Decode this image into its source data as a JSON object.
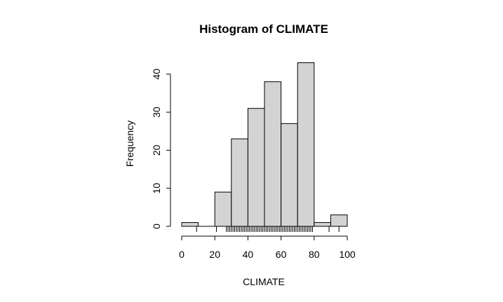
{
  "chart_data": {
    "type": "bar",
    "title": "Histogram of CLIMATE",
    "xlabel": "CLIMATE",
    "ylabel": "Frequency",
    "bins": [
      {
        "x0": 0,
        "x1": 10,
        "count": 1
      },
      {
        "x0": 10,
        "x1": 20,
        "count": 0
      },
      {
        "x0": 20,
        "x1": 30,
        "count": 9
      },
      {
        "x0": 30,
        "x1": 40,
        "count": 23
      },
      {
        "x0": 40,
        "x1": 50,
        "count": 31
      },
      {
        "x0": 50,
        "x1": 60,
        "count": 38
      },
      {
        "x0": 60,
        "x1": 70,
        "count": 27
      },
      {
        "x0": 70,
        "x1": 80,
        "count": 43
      },
      {
        "x0": 80,
        "x1": 90,
        "count": 1
      },
      {
        "x0": 90,
        "x1": 100,
        "count": 3
      }
    ],
    "xlim": [
      0,
      100
    ],
    "ylim": [
      0,
      43
    ],
    "x_ticks": [
      0,
      20,
      40,
      60,
      80,
      100
    ],
    "y_ticks": [
      0,
      10,
      20,
      30,
      40
    ],
    "rug": [
      9,
      21,
      27,
      28,
      29,
      30,
      31,
      32,
      33,
      34,
      35,
      36,
      37,
      38,
      39,
      40,
      41,
      42,
      43,
      44,
      45,
      46,
      47,
      48,
      49,
      50,
      51,
      52,
      53,
      54,
      55,
      56,
      57,
      58,
      59,
      60,
      61,
      62,
      63,
      64,
      65,
      66,
      67,
      68,
      69,
      70,
      71,
      72,
      73,
      74,
      75,
      76,
      77,
      78,
      79,
      89,
      95
    ],
    "bar_fill": "#d3d3d3",
    "bar_stroke": "#000000",
    "grid": false
  }
}
